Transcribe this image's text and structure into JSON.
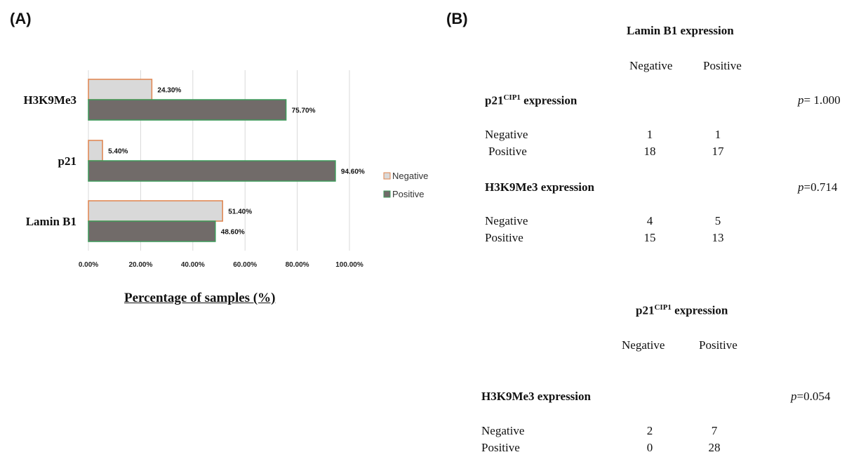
{
  "panel_a_label": "(A)",
  "panel_b_label": "(B)",
  "chart_data": {
    "type": "bar",
    "orientation": "horizontal",
    "categories": [
      "H3K9Me3",
      "p21",
      "Lamin B1"
    ],
    "series": [
      {
        "name": "Negative",
        "values": [
          24.3,
          5.4,
          51.4
        ],
        "labels": [
          "24.30%",
          "5.40%",
          "51.40%"
        ],
        "color": "#d9d9d9",
        "border": "#e0844d"
      },
      {
        "name": "Positive",
        "values": [
          75.7,
          94.6,
          48.6
        ],
        "labels": [
          "75.70%",
          "94.60%",
          "48.60%"
        ],
        "color": "#716b69",
        "border": "#3d9a5a"
      }
    ],
    "xlabel": "Percentage of samples (%)",
    "xlim": [
      0,
      100
    ],
    "xticks": [
      "0.00%",
      "20.00%",
      "40.00%",
      "60.00%",
      "80.00%",
      "100.00%"
    ],
    "grid": true,
    "legend": "right"
  },
  "table1": {
    "title": "Lamin B1 expression",
    "col_neg": "Negative",
    "col_pos": "Positive",
    "sections": [
      {
        "title_main": "p21",
        "title_sup": "CIP1",
        "title_rest": " expression",
        "p_label": "p",
        "p_value": "= 1.000",
        "rows": [
          {
            "label": "Negative",
            "neg": "1",
            "pos": "1"
          },
          {
            "label": "Positive",
            "neg": "18",
            "pos": "17"
          }
        ]
      },
      {
        "title_main": "H3K9Me3 expression",
        "p_label": "p",
        "p_value": "=0.714",
        "rows": [
          {
            "label": "Negative",
            "neg": "4",
            "pos": "5"
          },
          {
            "label": "Positive",
            "neg": "15",
            "pos": "13"
          }
        ]
      }
    ]
  },
  "table2": {
    "title_main": "p21",
    "title_sup": "CIP1",
    "title_rest": " expression",
    "col_neg": "Negative",
    "col_pos": "Positive",
    "section_title": "H3K9Me3 expression",
    "p_label": "p",
    "p_value": "=0.054",
    "rows": [
      {
        "label": "Negative",
        "neg": "2",
        "pos": "7"
      },
      {
        "label": "Positive",
        "neg": "0",
        "pos": "28"
      }
    ]
  }
}
